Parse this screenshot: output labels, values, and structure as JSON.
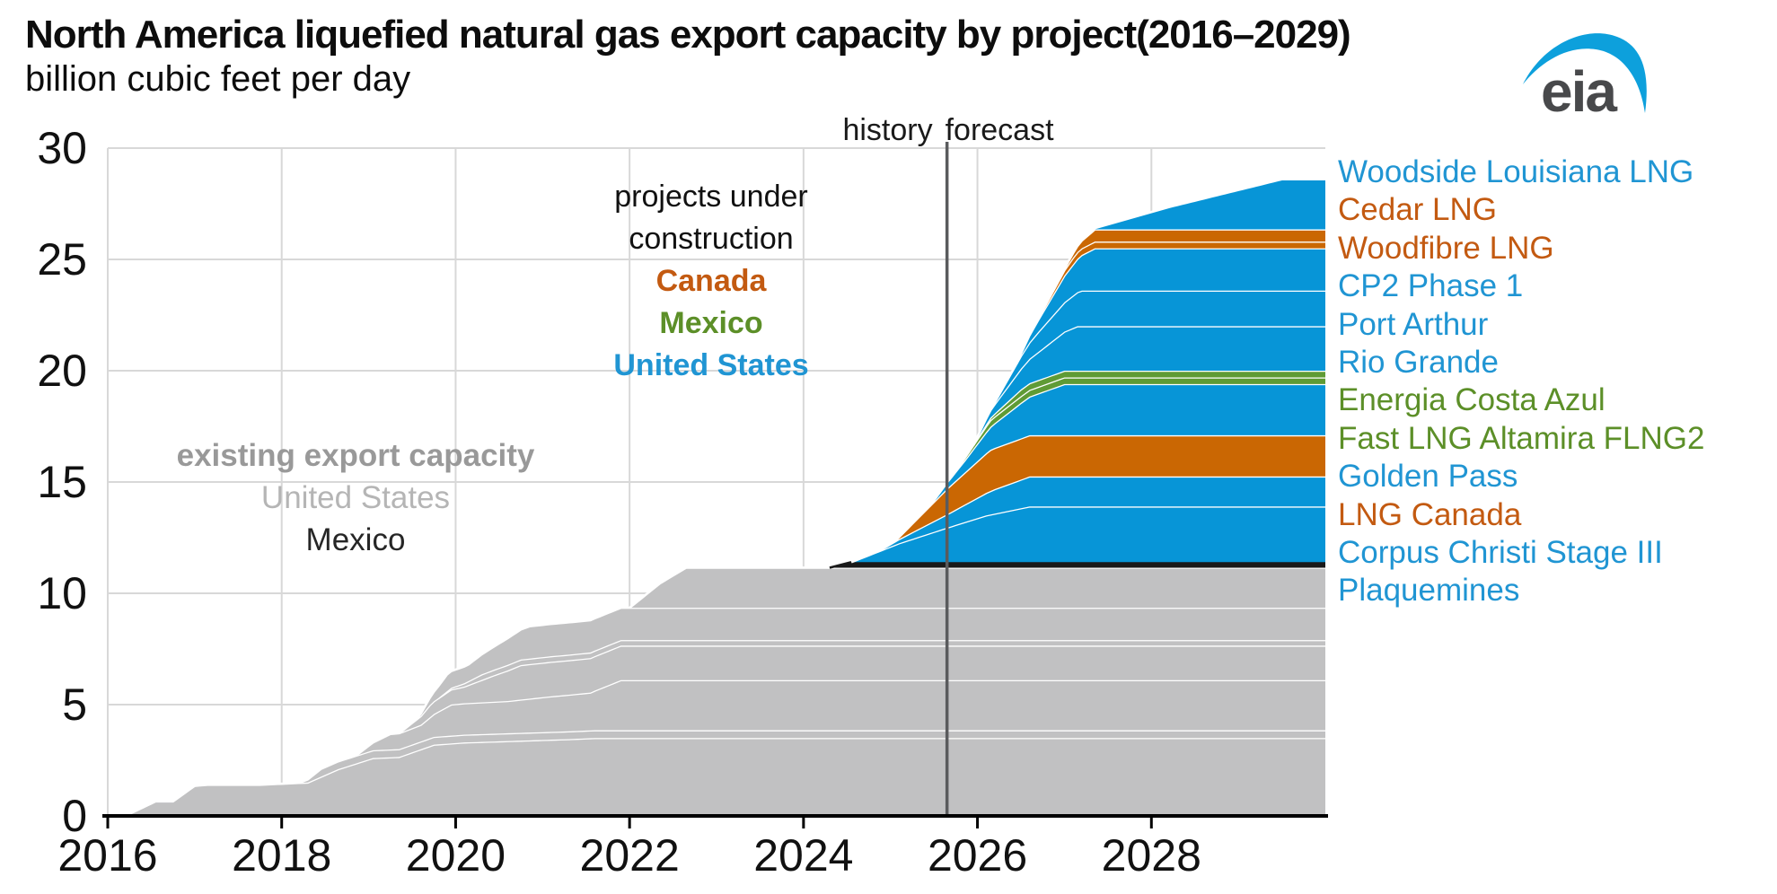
{
  "header": {
    "title": "North America liquefied natural gas export capacity by project(2016–2029)",
    "subtitle": "billion cubic feet per day",
    "logo_text": "eia"
  },
  "annotations": {
    "history": "history",
    "forecast": "forecast",
    "construction_line1": "projects under",
    "construction_line2": "construction",
    "construction_canada": "Canada",
    "construction_mexico": "Mexico",
    "construction_us": "United States",
    "existing_title": "existing export capacity",
    "existing_us": "United States",
    "existing_mexico": "Mexico"
  },
  "colors": {
    "blue": "#0795d7",
    "orange": "#ca6703",
    "green": "#5f9b35",
    "gray": "#c1c1c2",
    "black_band": "#1a1a1a",
    "blue_text": "#2095d3",
    "orange_text": "#c35a11",
    "green_text": "#5c8f28",
    "gray_text_bold": "#999999",
    "gray_text": "#b5b5b5",
    "dark_text": "#262626",
    "gridline": "#d8d8d8",
    "axis": "#000000",
    "history_line": "#5a5b5d",
    "logo_blue": "#0da0dc",
    "logo_gray": "#48494b"
  },
  "chart_data": {
    "type": "area",
    "stacked": true,
    "title": "North America liquefied natural gas export capacity by project(2016–2029)",
    "ylabel": "billion cubic feet per day",
    "x_range": [
      2016,
      2030
    ],
    "ylim": [
      0,
      30
    ],
    "x_ticks": [
      2016,
      2018,
      2020,
      2022,
      2024,
      2026,
      2028
    ],
    "y_ticks": [
      0,
      5,
      10,
      15,
      20,
      25,
      30
    ],
    "grid": true,
    "history_divider_x": 2025.65,
    "legend_position": "right",
    "legend": [
      {
        "label": "Woodside Louisiana LNG",
        "color_key": "blue_text"
      },
      {
        "label": "Cedar LNG",
        "color_key": "orange_text"
      },
      {
        "label": "Woodfibre LNG",
        "color_key": "orange_text"
      },
      {
        "label": "CP2 Phase 1",
        "color_key": "blue_text"
      },
      {
        "label": "Port Arthur",
        "color_key": "blue_text"
      },
      {
        "label": "Rio Grande",
        "color_key": "blue_text"
      },
      {
        "label": "Energia Costa Azul",
        "color_key": "green_text"
      },
      {
        "label": "Fast LNG Altamira FLNG2",
        "color_key": "green_text"
      },
      {
        "label": "Golden Pass",
        "color_key": "blue_text"
      },
      {
        "label": "LNG Canada",
        "color_key": "orange_text"
      },
      {
        "label": "Corpus Christi Stage III",
        "color_key": "blue_text"
      },
      {
        "label": "Plaquemines",
        "color_key": "blue_text"
      }
    ],
    "series": [
      {
        "name": "existing United States 1",
        "group": "existing export capacity",
        "color_key": "gray",
        "points": [
          [
            2016.2,
            0
          ],
          [
            2016.55,
            0.65
          ],
          [
            2016.75,
            0.65
          ],
          [
            2017.0,
            1.35
          ],
          [
            2017.15,
            1.4
          ],
          [
            2017.75,
            1.4
          ],
          [
            2018.3,
            1.5
          ],
          [
            2018.65,
            2.1
          ],
          [
            2019.05,
            2.6
          ],
          [
            2019.35,
            2.65
          ],
          [
            2019.75,
            3.2
          ],
          [
            2020.1,
            3.3
          ],
          [
            2021.3,
            3.45
          ],
          [
            2021.6,
            3.5
          ],
          [
            2030,
            3.5
          ]
        ]
      },
      {
        "name": "existing United States 2",
        "group": "existing export capacity",
        "color_key": "gray",
        "points": [
          [
            2018.2,
            0
          ],
          [
            2018.45,
            0.35
          ],
          [
            2030,
            0.35
          ]
        ]
      },
      {
        "name": "existing United States 3",
        "group": "existing export capacity",
        "color_key": "gray",
        "points": [
          [
            2018.85,
            0
          ],
          [
            2019.25,
            0.7
          ],
          [
            2019.6,
            0.75
          ],
          [
            2019.95,
            1.4
          ],
          [
            2020.6,
            1.45
          ],
          [
            2021.1,
            1.6
          ],
          [
            2021.55,
            1.7
          ],
          [
            2021.9,
            2.25
          ],
          [
            2030,
            2.25
          ]
        ]
      },
      {
        "name": "existing United States 4",
        "group": "existing export capacity",
        "color_key": "gray",
        "points": [
          [
            2019.35,
            0
          ],
          [
            2019.7,
            0.55
          ],
          [
            2020.1,
            0.75
          ],
          [
            2020.45,
            1.2
          ],
          [
            2020.75,
            1.55
          ],
          [
            2030,
            1.55
          ]
        ]
      },
      {
        "name": "existing United States 5",
        "group": "existing export capacity",
        "color_key": "gray",
        "points": [
          [
            2019.8,
            0
          ],
          [
            2020.3,
            0.25
          ],
          [
            2030,
            0.25
          ]
        ]
      },
      {
        "name": "existing United States 6",
        "group": "existing export capacity",
        "color_key": "gray",
        "points": [
          [
            2019.55,
            0
          ],
          [
            2019.9,
            0.75
          ],
          [
            2020.15,
            0.75
          ],
          [
            2020.5,
            1.1
          ],
          [
            2020.85,
            1.45
          ],
          [
            2030,
            1.45
          ]
        ]
      },
      {
        "name": "existing United States 7",
        "group": "existing export capacity",
        "color_key": "gray",
        "points": [
          [
            2022.0,
            0
          ],
          [
            2022.35,
            1.1
          ],
          [
            2022.65,
            1.8
          ],
          [
            2030,
            1.8
          ]
        ]
      },
      {
        "name": "Mexico existing",
        "group": "existing export capacity",
        "color_key": "black_band",
        "stroke_key": "black_band",
        "points": [
          [
            2024.3,
            0
          ],
          [
            2024.55,
            0.25
          ],
          [
            2030,
            0.25
          ]
        ]
      },
      {
        "name": "Plaquemines",
        "group": "projects under construction",
        "color_key": "blue",
        "points": [
          [
            2024.55,
            0
          ],
          [
            2025.1,
            0.85
          ],
          [
            2025.65,
            1.55
          ],
          [
            2026.1,
            2.1
          ],
          [
            2026.6,
            2.5
          ],
          [
            2030,
            2.5
          ]
        ]
      },
      {
        "name": "Corpus Christi Stage III",
        "group": "projects under construction",
        "color_key": "blue",
        "points": [
          [
            2024.85,
            0
          ],
          [
            2025.65,
            0.6
          ],
          [
            2026.2,
            1.1
          ],
          [
            2026.6,
            1.35
          ],
          [
            2030,
            1.35
          ]
        ]
      },
      {
        "name": "LNG Canada",
        "group": "projects under construction",
        "color_key": "orange",
        "points": [
          [
            2025.05,
            0
          ],
          [
            2025.65,
            1.15
          ],
          [
            2026.15,
            1.85
          ],
          [
            2030,
            1.85
          ]
        ]
      },
      {
        "name": "Golden Pass",
        "group": "projects under construction",
        "color_key": "blue",
        "points": [
          [
            2025.45,
            0
          ],
          [
            2025.85,
            0.55
          ],
          [
            2026.5,
            1.6
          ],
          [
            2027.0,
            2.3
          ],
          [
            2030,
            2.3
          ]
        ]
      },
      {
        "name": "Fast LNG Altamira FLNG2",
        "group": "projects under construction",
        "color_key": "green",
        "points": [
          [
            2025.7,
            0
          ],
          [
            2026.15,
            0.3
          ],
          [
            2030,
            0.3
          ]
        ]
      },
      {
        "name": "Energia Costa Azul",
        "group": "projects under construction",
        "color_key": "green",
        "points": [
          [
            2025.95,
            0
          ],
          [
            2026.5,
            0.3
          ],
          [
            2030,
            0.3
          ]
        ]
      },
      {
        "name": "Rio Grande",
        "group": "projects under construction",
        "color_key": "blue",
        "points": [
          [
            2025.95,
            0
          ],
          [
            2026.6,
            1.1
          ],
          [
            2027.15,
            2.0
          ],
          [
            2030,
            2.0
          ]
        ]
      },
      {
        "name": "Port Arthur",
        "group": "projects under construction",
        "color_key": "blue",
        "points": [
          [
            2026.15,
            0
          ],
          [
            2026.7,
            0.9
          ],
          [
            2027.2,
            1.6
          ],
          [
            2030,
            1.6
          ]
        ]
      },
      {
        "name": "CP2 Phase 1",
        "group": "projects under construction",
        "color_key": "blue",
        "points": [
          [
            2026.45,
            0
          ],
          [
            2027.0,
            1.2
          ],
          [
            2027.35,
            1.9
          ],
          [
            2030,
            1.9
          ]
        ]
      },
      {
        "name": "Woodfibre LNG",
        "group": "projects under construction",
        "color_key": "orange",
        "points": [
          [
            2026.6,
            0
          ],
          [
            2027.1,
            0.3
          ],
          [
            2030,
            0.3
          ]
        ]
      },
      {
        "name": "Cedar LNG",
        "group": "projects under construction",
        "color_key": "orange",
        "points": [
          [
            2026.95,
            0
          ],
          [
            2027.35,
            0.55
          ],
          [
            2030,
            0.55
          ]
        ]
      },
      {
        "name": "Woodside Louisiana LNG",
        "group": "projects under construction",
        "color_key": "blue",
        "points": [
          [
            2027.3,
            0
          ],
          [
            2028.2,
            1.0
          ],
          [
            2029.5,
            2.25
          ],
          [
            2030,
            2.25
          ]
        ]
      }
    ]
  }
}
